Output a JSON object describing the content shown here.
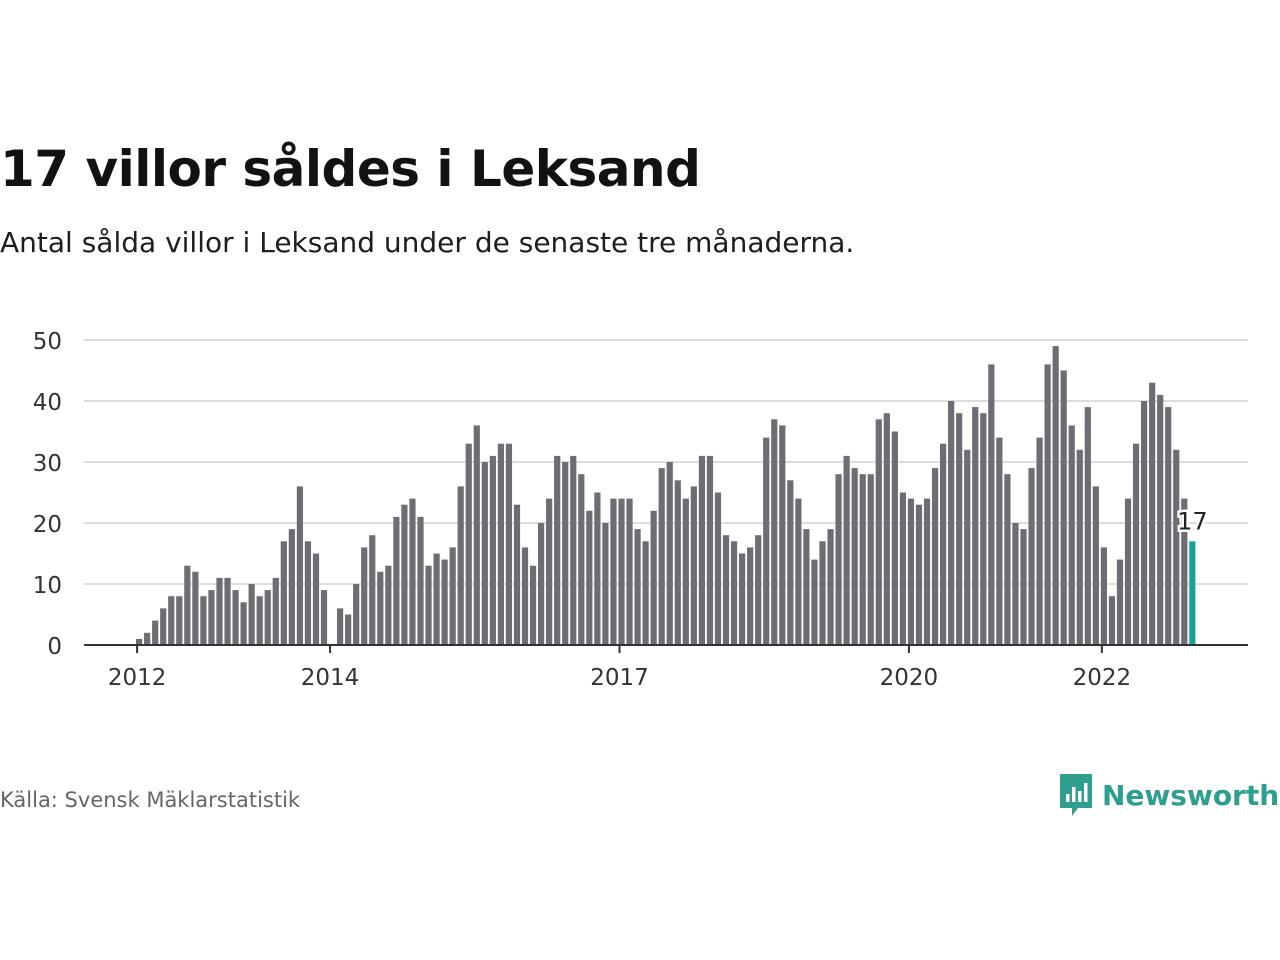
{
  "title": "17 villor såldes i Leksand",
  "subtitle": "Antal sålda villor i Leksand under de senaste tre månaderna.",
  "source": "Källa: Svensk Mäklarstatistik",
  "brand": {
    "name": "Newsworthy",
    "icon": "newsworthy-chart-bubble-icon"
  },
  "colors": {
    "bar": "#6e6d73",
    "highlight": "#1aa394",
    "grid": "#dddddd",
    "axis": "#333333",
    "brand": "#2e9e8f"
  },
  "chart_data": {
    "type": "bar",
    "ylim": [
      0,
      50
    ],
    "yticks": [
      0,
      10,
      20,
      30,
      40,
      50
    ],
    "xtick_labels": [
      {
        "label": "2012",
        "index": 0
      },
      {
        "label": "2014",
        "index": 24
      },
      {
        "label": "2017",
        "index": 60
      },
      {
        "label": "2020",
        "index": 96
      },
      {
        "label": "2022",
        "index": 120
      }
    ],
    "values": [
      1,
      2,
      4,
      6,
      8,
      8,
      13,
      12,
      8,
      9,
      11,
      11,
      9,
      7,
      10,
      8,
      9,
      11,
      17,
      19,
      26,
      17,
      15,
      9,
      0,
      6,
      5,
      10,
      16,
      18,
      12,
      13,
      21,
      23,
      24,
      21,
      13,
      15,
      14,
      16,
      26,
      33,
      36,
      30,
      31,
      33,
      33,
      23,
      16,
      13,
      20,
      24,
      31,
      30,
      31,
      28,
      22,
      25,
      20,
      24,
      24,
      24,
      19,
      17,
      22,
      29,
      30,
      27,
      24,
      26,
      31,
      31,
      25,
      18,
      17,
      15,
      16,
      18,
      34,
      37,
      36,
      27,
      24,
      19,
      14,
      17,
      19,
      28,
      31,
      29,
      28,
      28,
      37,
      38,
      35,
      25,
      24,
      23,
      24,
      29,
      33,
      40,
      38,
      32,
      39,
      38,
      46,
      34,
      28,
      20,
      19,
      29,
      34,
      46,
      49,
      45,
      36,
      32,
      39,
      26,
      16,
      8,
      14,
      24,
      33,
      40,
      43,
      41,
      39,
      32,
      24,
      17
    ],
    "highlight_index": 131,
    "highlight_label": "17"
  }
}
